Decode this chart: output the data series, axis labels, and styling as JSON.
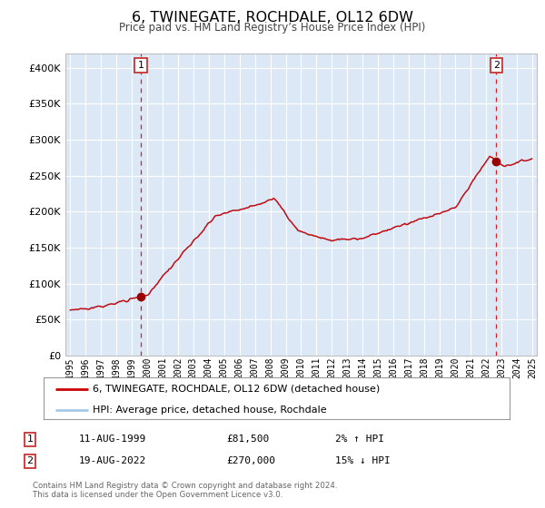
{
  "title": "6, TWINEGATE, ROCHDALE, OL12 6DW",
  "subtitle": "Price paid vs. HM Land Registry’s House Price Index (HPI)",
  "legend_line1": "6, TWINEGATE, ROCHDALE, OL12 6DW (detached house)",
  "legend_line2": "HPI: Average price, detached house, Rochdale",
  "footnote1": "Contains HM Land Registry data © Crown copyright and database right 2024.",
  "footnote2": "This data is licensed under the Open Government Licence v3.0.",
  "sale1_date": "11-AUG-1999",
  "sale1_price": "£81,500",
  "sale1_hpi": "2% ↑ HPI",
  "sale2_date": "19-AUG-2022",
  "sale2_price": "£270,000",
  "sale2_hpi": "15% ↓ HPI",
  "hpi_color": "#a8c8e8",
  "price_color": "#cc0000",
  "bg_color": "#dce8f5",
  "grid_color": "#ffffff",
  "marker_color": "#990000",
  "dashed_line_color": "#cc0000",
  "ylim_min": 0,
  "ylim_max": 420000,
  "yticks": [
    0,
    50000,
    100000,
    150000,
    200000,
    250000,
    300000,
    350000,
    400000
  ],
  "sale1_year": 1999.617,
  "sale1_value": 81500,
  "sale2_year": 2022.633,
  "sale2_value": 270000,
  "xmin": 1994.7,
  "xmax": 2025.3
}
